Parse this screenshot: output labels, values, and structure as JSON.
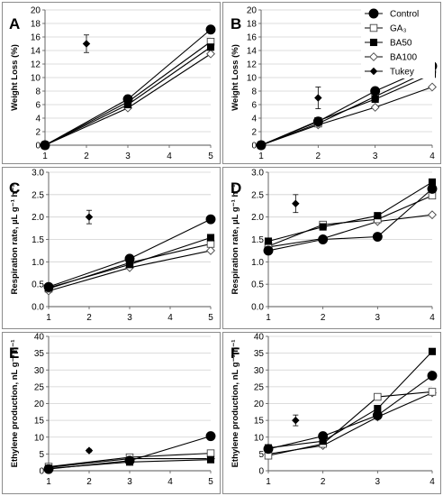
{
  "legend": [
    {
      "name": "Control",
      "marker": "circle"
    },
    {
      "name": "GA₃",
      "marker": "square-open"
    },
    {
      "name": "BA50",
      "marker": "square"
    },
    {
      "name": "BA100",
      "marker": "diamond-open"
    },
    {
      "name": "Tukey",
      "marker": "diamond"
    }
  ],
  "chart_data": [
    {
      "type": "line",
      "panel": "A",
      "ylabel": "Weight Loss (%)",
      "x": [
        1,
        2,
        3,
        4,
        5
      ],
      "xlim": [
        1,
        5
      ],
      "ylim": [
        0,
        20
      ],
      "ystep": 2,
      "ydec": 0,
      "series": [
        {
          "name": "Control",
          "x": [
            1,
            3,
            5
          ],
          "values": [
            0,
            6.8,
            17.1
          ]
        },
        {
          "name": "GA₃",
          "x": [
            1,
            3,
            5
          ],
          "values": [
            0,
            6.4,
            15.3
          ]
        },
        {
          "name": "BA50",
          "x": [
            1,
            3,
            5
          ],
          "values": [
            0,
            6.0,
            14.5
          ]
        },
        {
          "name": "BA100",
          "x": [
            1,
            3,
            5
          ],
          "values": [
            0,
            5.5,
            13.5
          ]
        }
      ],
      "tukey": {
        "x": 2,
        "y": 15.0,
        "err": 1.3
      }
    },
    {
      "type": "line",
      "panel": "B",
      "ylabel": "Weight Loss (%)",
      "x": [
        1,
        2,
        3,
        4
      ],
      "xlim": [
        1,
        4
      ],
      "ylim": [
        0,
        20
      ],
      "ystep": 2,
      "ydec": 0,
      "series": [
        {
          "name": "Control",
          "x": [
            1,
            2,
            3,
            4
          ],
          "values": [
            0,
            3.5,
            8.0,
            11.7
          ]
        },
        {
          "name": "GA₃",
          "x": [
            1,
            2,
            3,
            4
          ],
          "values": [
            0,
            3.2,
            7.2,
            11.2
          ]
        },
        {
          "name": "BA50",
          "x": [
            1,
            2,
            3,
            4
          ],
          "values": [
            0,
            3.6,
            6.8,
            10.5
          ]
        },
        {
          "name": "BA100",
          "x": [
            1,
            2,
            3,
            4
          ],
          "values": [
            0,
            3.0,
            5.6,
            8.6
          ]
        }
      ],
      "tukey": {
        "x": 2,
        "y": 7.0,
        "err": 1.6
      }
    },
    {
      "type": "line",
      "panel": "C",
      "ylabel": "Respiration rate, µL g⁻¹ h⁻¹",
      "x": [
        1,
        2,
        3,
        4,
        5
      ],
      "xlim": [
        1,
        5
      ],
      "ylim": [
        0,
        3
      ],
      "ystep": 0.5,
      "ydec": 1,
      "series": [
        {
          "name": "Control",
          "x": [
            1,
            3,
            5
          ],
          "values": [
            0.44,
            1.07,
            1.95
          ]
        },
        {
          "name": "GA₃",
          "x": [
            1,
            3,
            5
          ],
          "values": [
            0.4,
            0.98,
            1.4
          ]
        },
        {
          "name": "BA50",
          "x": [
            1,
            3,
            5
          ],
          "values": [
            0.42,
            0.94,
            1.54
          ]
        },
        {
          "name": "BA100",
          "x": [
            1,
            3,
            5
          ],
          "values": [
            0.35,
            0.87,
            1.25
          ]
        }
      ],
      "tukey": {
        "x": 2,
        "y": 2.0,
        "err": 0.15
      }
    },
    {
      "type": "line",
      "panel": "D",
      "ylabel": "Respiration rate, µL g⁻¹ h⁻¹",
      "x": [
        1,
        2,
        3,
        4
      ],
      "xlim": [
        1,
        4
      ],
      "ylim": [
        0,
        3
      ],
      "ystep": 0.5,
      "ydec": 1,
      "series": [
        {
          "name": "Control",
          "x": [
            1,
            2,
            3,
            4
          ],
          "values": [
            1.25,
            1.5,
            1.56,
            2.63
          ]
        },
        {
          "name": "GA₃",
          "x": [
            1,
            2,
            3,
            4
          ],
          "values": [
            1.35,
            1.83,
            1.95,
            2.48
          ]
        },
        {
          "name": "BA50",
          "x": [
            1,
            2,
            3,
            4
          ],
          "values": [
            1.46,
            1.78,
            2.03,
            2.78
          ]
        },
        {
          "name": "BA100",
          "x": [
            1,
            2,
            3,
            4
          ],
          "values": [
            1.33,
            1.52,
            1.9,
            2.05
          ]
        }
      ],
      "tukey": {
        "x": 1.5,
        "y": 2.3,
        "err": 0.2
      }
    },
    {
      "type": "line",
      "panel": "E",
      "ylabel": "Ethylene production, nL g⁻¹ h⁻¹",
      "x": [
        1,
        2,
        3,
        4,
        5
      ],
      "xlim": [
        1,
        5
      ],
      "ylim": [
        0,
        40
      ],
      "ystep": 5,
      "ydec": 0,
      "series": [
        {
          "name": "Control",
          "x": [
            1,
            3,
            5
          ],
          "values": [
            0.5,
            3.0,
            10.3
          ]
        },
        {
          "name": "GA₃",
          "x": [
            1,
            3,
            5
          ],
          "values": [
            1.2,
            4.0,
            5.2
          ]
        },
        {
          "name": "BA50",
          "x": [
            1,
            3,
            5
          ],
          "values": [
            0.7,
            2.6,
            3.3
          ]
        },
        {
          "name": "BA100",
          "x": [
            1,
            3,
            5
          ],
          "values": [
            1.0,
            3.6,
            3.6
          ]
        }
      ],
      "tukey": {
        "x": 2,
        "y": 6.0,
        "err": 0.4
      }
    },
    {
      "type": "line",
      "panel": "F",
      "ylabel": "Ethylene production, nL g⁻¹ h⁻¹",
      "x": [
        1,
        2,
        3,
        4
      ],
      "xlim": [
        1,
        4
      ],
      "ylim": [
        0,
        40
      ],
      "ystep": 5,
      "ydec": 0,
      "series": [
        {
          "name": "Control",
          "x": [
            1,
            2,
            3,
            4
          ],
          "values": [
            6.5,
            10.3,
            16.5,
            28.3
          ]
        },
        {
          "name": "GA₃",
          "x": [
            1,
            2,
            3,
            4
          ],
          "values": [
            4.5,
            8.0,
            22.0,
            23.5
          ]
        },
        {
          "name": "BA50",
          "x": [
            1,
            2,
            3,
            4
          ],
          "values": [
            6.8,
            8.8,
            18.5,
            35.5
          ]
        },
        {
          "name": "BA100",
          "x": [
            1,
            2,
            3,
            4
          ],
          "values": [
            5.0,
            7.5,
            16.0,
            23.2
          ]
        }
      ],
      "tukey": {
        "x": 1.5,
        "y": 15.0,
        "err": 1.6
      }
    }
  ]
}
